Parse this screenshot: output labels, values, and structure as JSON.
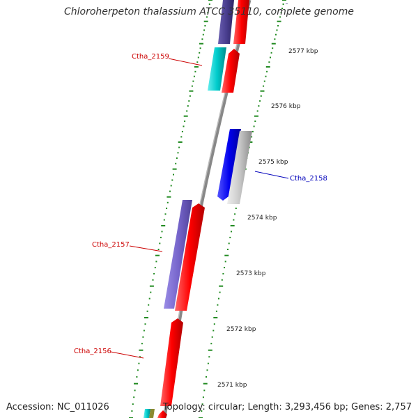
{
  "title": "Chloroherpeton thalassium ATCC 35110, complete genome",
  "footer": {
    "accession": "Accession: NC_011026",
    "summary": "Topology: circular; Length: 3,293,456 bp; Genes: 2,757"
  },
  "ticks": [
    "2577 kbp",
    "2576 kbp",
    "2575 kbp",
    "2574 kbp",
    "2573 kbp",
    "2572 kbp",
    "2571 kbp"
  ],
  "gene_labels": [
    {
      "name": "Ctha_2159",
      "color": "#cc0000"
    },
    {
      "name": "Ctha_2158",
      "color": "#0000bb"
    },
    {
      "name": "Ctha_2157",
      "color": "#cc0000"
    },
    {
      "name": "Ctha_2156",
      "color": "#cc0000"
    }
  ],
  "colors": {
    "forward": "#ff0000",
    "reverse": "#0000ee",
    "cyan": "#00cccc",
    "slate": "#7766cc",
    "grey": "#bbbbbb",
    "backbone": "#888888",
    "tick": "#228b22"
  }
}
